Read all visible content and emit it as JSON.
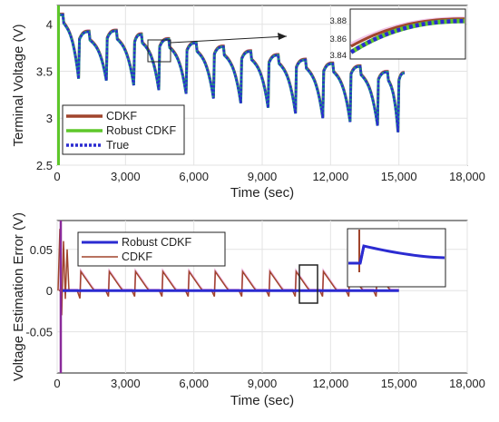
{
  "chart_data": [
    {
      "type": "line",
      "xlabel": "Time (sec)",
      "ylabel": "Terminal Voltage (V)",
      "xlim": [
        0,
        18000
      ],
      "ylim": [
        2.5,
        4.2
      ],
      "xticks": [
        "0",
        "3,000",
        "6,000",
        "9,000",
        "12,000",
        "15,000",
        "18,000"
      ],
      "yticks": [
        "2.5",
        "3",
        "3.5",
        "4"
      ],
      "grid": true,
      "legend_position": "bottom-left",
      "series": [
        {
          "name": "CDKF",
          "color": "#a0442c"
        },
        {
          "name": "Robust CDKF",
          "color": "#5ec72a"
        },
        {
          "name": "True",
          "color": "#2b2bd1"
        }
      ],
      "colors": {
        "cdkf": "#a0442c",
        "robust": "#5ec72a",
        "true": "#2b2bd1",
        "teal": "#1f8c8c",
        "pink": "#e8a0d8"
      },
      "discharge_cycles": [
        {
          "start": 250,
          "top": 4.1,
          "bottom": 3.42,
          "end": 980
        },
        {
          "start": 1400,
          "top": 3.92,
          "bottom": 3.4,
          "end": 2200
        },
        {
          "start": 2600,
          "top": 3.93,
          "bottom": 3.35,
          "end": 3400
        },
        {
          "start": 3700,
          "top": 3.89,
          "bottom": 3.3,
          "end": 4500
        },
        {
          "start": 4900,
          "top": 3.84,
          "bottom": 3.26,
          "end": 5700
        },
        {
          "start": 6100,
          "top": 3.8,
          "bottom": 3.21,
          "end": 6900
        },
        {
          "start": 7300,
          "top": 3.76,
          "bottom": 3.16,
          "end": 8100
        },
        {
          "start": 8500,
          "top": 3.71,
          "bottom": 3.11,
          "end": 9300
        },
        {
          "start": 9700,
          "top": 3.67,
          "bottom": 3.05,
          "end": 10500
        },
        {
          "start": 10900,
          "top": 3.62,
          "bottom": 3.0,
          "end": 11700
        },
        {
          "start": 12100,
          "top": 3.58,
          "bottom": 2.96,
          "end": 12900
        },
        {
          "start": 13300,
          "top": 3.55,
          "bottom": 2.92,
          "end": 14100
        },
        {
          "start": 14500,
          "top": 3.49,
          "bottom": 2.85,
          "end": 15000
        }
      ],
      "final_value": 3.48,
      "inset": {
        "yticks": [
          "3.88",
          "3.86",
          "3.84"
        ],
        "ylim": [
          3.83,
          3.895
        ]
      }
    },
    {
      "type": "line",
      "xlabel": "Time (sec)",
      "ylabel": "Voltage Estimation Error (V)",
      "xlim": [
        0,
        18000
      ],
      "ylim": [
        -0.1,
        0.085
      ],
      "xticks": [
        "0",
        "3,000",
        "6,000",
        "9,000",
        "12,000",
        "15,000",
        "18,000"
      ],
      "yticks": [
        "0.05",
        "0",
        "-0.05"
      ],
      "grid": true,
      "legend_position": "top-left",
      "series": [
        {
          "name": "Robust CDKF",
          "color": "#2b2bd1"
        },
        {
          "name": "CDKF",
          "color": "#a0442c"
        }
      ],
      "cdkf_spikes": [
        1000,
        2250,
        3400,
        4600,
        5750,
        6900,
        8100,
        9300,
        10450,
        11650,
        12800,
        14000
      ],
      "spike_height": 0.023,
      "dip_depth": -0.012,
      "end_time": 15000
    }
  ]
}
